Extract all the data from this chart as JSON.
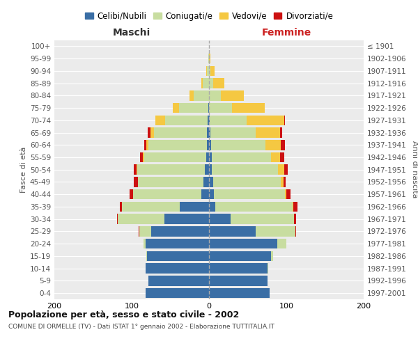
{
  "age_groups": [
    "0-4",
    "5-9",
    "10-14",
    "15-19",
    "20-24",
    "25-29",
    "30-34",
    "35-39",
    "40-44",
    "45-49",
    "50-54",
    "55-59",
    "60-64",
    "65-69",
    "70-74",
    "75-79",
    "80-84",
    "85-89",
    "90-94",
    "95-99",
    "100+"
  ],
  "birth_years": [
    "1997-2001",
    "1992-1996",
    "1987-1991",
    "1982-1986",
    "1977-1981",
    "1972-1976",
    "1967-1971",
    "1962-1966",
    "1957-1961",
    "1952-1956",
    "1947-1951",
    "1942-1946",
    "1937-1941",
    "1932-1936",
    "1927-1931",
    "1922-1926",
    "1917-1921",
    "1912-1916",
    "1907-1911",
    "1902-1906",
    "≤ 1901"
  ],
  "male": {
    "celibi": [
      82,
      78,
      82,
      80,
      82,
      75,
      58,
      38,
      10,
      7,
      5,
      4,
      3,
      3,
      2,
      1,
      0,
      0,
      0,
      0,
      0
    ],
    "coniugati": [
      0,
      0,
      0,
      1,
      3,
      15,
      60,
      75,
      88,
      85,
      88,
      80,
      75,
      68,
      55,
      38,
      20,
      8,
      3,
      1,
      0
    ],
    "vedovi": [
      0,
      0,
      0,
      0,
      0,
      0,
      0,
      0,
      0,
      0,
      1,
      2,
      3,
      5,
      12,
      8,
      5,
      2,
      1,
      0,
      0
    ],
    "divorziati": [
      0,
      0,
      0,
      0,
      0,
      1,
      1,
      2,
      5,
      5,
      3,
      3,
      3,
      3,
      0,
      0,
      0,
      0,
      0,
      0,
      0
    ]
  },
  "female": {
    "nubili": [
      78,
      76,
      76,
      80,
      88,
      60,
      28,
      8,
      6,
      5,
      4,
      4,
      3,
      2,
      1,
      0,
      0,
      0,
      0,
      0,
      0
    ],
    "coniugate": [
      0,
      0,
      1,
      3,
      12,
      52,
      82,
      100,
      92,
      88,
      85,
      76,
      70,
      58,
      48,
      30,
      15,
      5,
      2,
      0,
      0
    ],
    "vedove": [
      0,
      0,
      0,
      0,
      0,
      0,
      0,
      1,
      2,
      3,
      8,
      12,
      20,
      32,
      48,
      42,
      30,
      15,
      5,
      2,
      0
    ],
    "divorziate": [
      0,
      0,
      0,
      0,
      0,
      1,
      3,
      5,
      5,
      3,
      5,
      5,
      5,
      3,
      1,
      0,
      0,
      0,
      0,
      0,
      0
    ]
  },
  "colors": {
    "celibi_nubili": "#3a6ea5",
    "coniugati": "#c8dda0",
    "vedovi": "#f5c842",
    "divorziati": "#cc1111"
  },
  "title": "Popolazione per età, sesso e stato civile - 2002",
  "subtitle": "COMUNE DI ORMELLE (TV) - Dati ISTAT 1° gennaio 2002 - Elaborazione TUTTITALIA.IT",
  "xlabel_left": "Maschi",
  "xlabel_right": "Femmine",
  "ylabel_left": "Fasce di età",
  "ylabel_right": "Anni di nascita",
  "xlim": 200,
  "bg_color": "#ffffff",
  "plot_bg_color": "#ebebeb",
  "grid_color": "#ffffff"
}
